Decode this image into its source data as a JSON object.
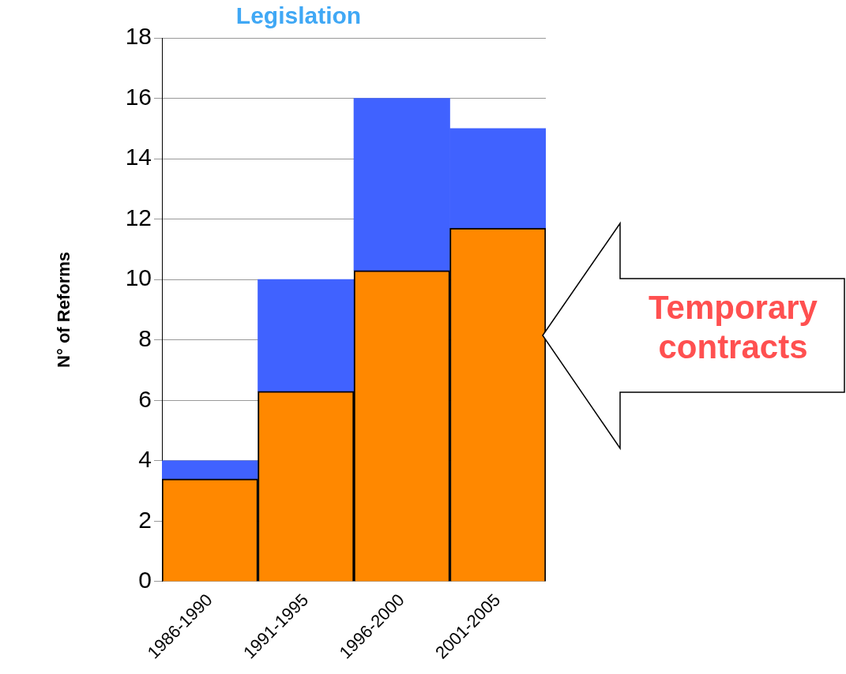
{
  "chart_data": {
    "type": "bar",
    "title": "Legislation",
    "ylabel": "N° of Reforms",
    "categories": [
      "1986-1990",
      "1991-1995",
      "1996-2000",
      "2001-2005"
    ],
    "series": [
      {
        "color": "#ff8800",
        "values": [
          3.4,
          6.3,
          10.3,
          11.7
        ]
      },
      {
        "color": "#4062ff",
        "values": [
          0.6,
          3.7,
          5.7,
          3.3
        ]
      }
    ],
    "stacked": true,
    "ylim": [
      0,
      18
    ],
    "yticks": [
      0,
      2,
      4,
      6,
      8,
      10,
      12,
      14,
      16,
      18
    ],
    "grid": "y",
    "annotations": [
      "Temporary contracts"
    ]
  }
}
